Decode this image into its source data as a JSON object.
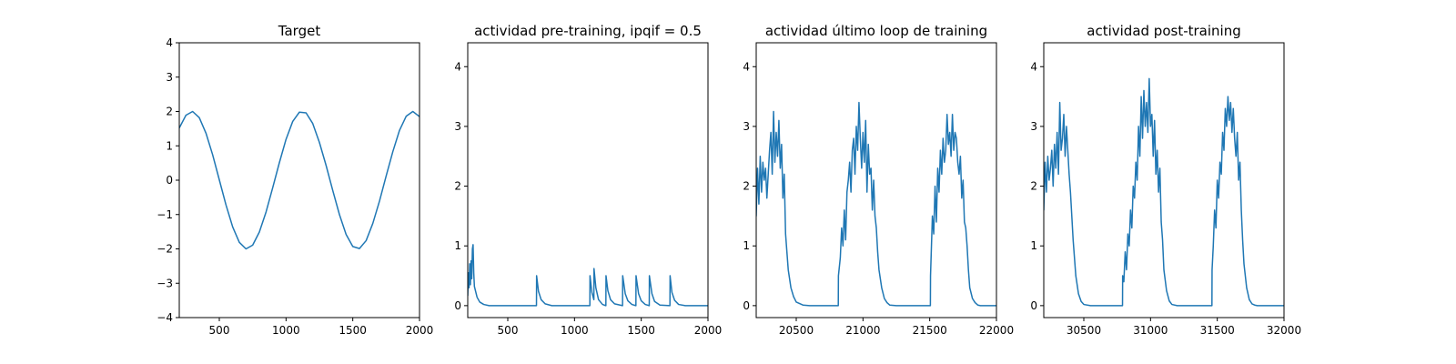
{
  "figure": {
    "background": "#ffffff",
    "line_color": "#1f77b4"
  },
  "chart_data": [
    {
      "type": "line",
      "title": "Target",
      "xlim": [
        200,
        2000
      ],
      "ylim": [
        -4,
        4
      ],
      "xticks": [
        500,
        1000,
        1500,
        2000
      ],
      "yticks": [
        -4,
        -3,
        -2,
        -1,
        0,
        1,
        2,
        3,
        4
      ],
      "series": [
        {
          "x": [
            200,
            250,
            300,
            350,
            400,
            450,
            500,
            550,
            600,
            650,
            700,
            750,
            800,
            850,
            900,
            950,
            1000,
            1050,
            1100,
            1150,
            1200,
            1250,
            1300,
            1350,
            1400,
            1450,
            1500,
            1550,
            1600,
            1650,
            1700,
            1750,
            1800,
            1850,
            1900,
            1950,
            2000
          ],
          "y": [
            1.52,
            1.89,
            2.0,
            1.82,
            1.37,
            0.74,
            0.01,
            -0.72,
            -1.36,
            -1.81,
            -2.0,
            -1.89,
            -1.51,
            -0.93,
            -0.22,
            0.51,
            1.19,
            1.71,
            1.98,
            1.96,
            1.65,
            1.1,
            0.43,
            -0.3,
            -1.0,
            -1.58,
            -1.93,
            -1.99,
            -1.76,
            -1.26,
            -0.61,
            0.12,
            0.83,
            1.45,
            1.86,
            2.0,
            1.85
          ]
        }
      ]
    },
    {
      "type": "line",
      "title": "actividad pre-training, ipqif = 0.5",
      "xlim": [
        200,
        2000
      ],
      "ylim": [
        -0.2,
        4.4
      ],
      "xticks": [
        500,
        1000,
        1500,
        2000
      ],
      "yticks": [
        0,
        1,
        2,
        3,
        4
      ],
      "series": [
        {
          "x": [
            200,
            205,
            210,
            215,
            220,
            225,
            230,
            235,
            240,
            245,
            250,
            270,
            290,
            320,
            360,
            420,
            500,
            715,
            716,
            730,
            750,
            780,
            830,
            900,
            1000,
            1115,
            1116,
            1130,
            1145,
            1146,
            1160,
            1180,
            1210,
            1235,
            1236,
            1250,
            1270,
            1300,
            1360,
            1361,
            1380,
            1400,
            1430,
            1460,
            1461,
            1480,
            1500,
            1530,
            1560,
            1561,
            1580,
            1600,
            1640,
            1715,
            1716,
            1730,
            1750,
            1780,
            1830,
            1900,
            2000
          ],
          "y": [
            0.17,
            0.55,
            0.3,
            0.7,
            0.35,
            0.75,
            0.45,
            0.95,
            1.02,
            0.55,
            0.32,
            0.14,
            0.06,
            0.02,
            0.0,
            0.0,
            0.0,
            0.0,
            0.5,
            0.24,
            0.1,
            0.03,
            0.0,
            0.0,
            0.0,
            0.0,
            0.5,
            0.22,
            0.1,
            0.62,
            0.3,
            0.1,
            0.02,
            0.0,
            0.5,
            0.25,
            0.1,
            0.03,
            0.0,
            0.5,
            0.2,
            0.08,
            0.02,
            0.0,
            0.5,
            0.2,
            0.08,
            0.02,
            0.0,
            0.5,
            0.2,
            0.07,
            0.01,
            0.0,
            0.5,
            0.22,
            0.09,
            0.02,
            0.0,
            0.0,
            0.0
          ]
        }
      ]
    },
    {
      "type": "line",
      "title": "actividad último loop de training",
      "xlim": [
        20200,
        22000
      ],
      "ylim": [
        -0.2,
        4.4
      ],
      "xticks": [
        20500,
        21000,
        21500,
        22000
      ],
      "yticks": [
        0,
        1,
        2,
        3,
        4
      ],
      "series": [
        {
          "x": [
            20200,
            20210,
            20220,
            20230,
            20240,
            20250,
            20260,
            20270,
            20280,
            20290,
            20300,
            20310,
            20320,
            20330,
            20340,
            20350,
            20360,
            20370,
            20380,
            20390,
            20400,
            20410,
            20420,
            20430,
            20440,
            20460,
            20480,
            20500,
            20550,
            20600,
            20700,
            20815,
            20816,
            20830,
            20840,
            20850,
            20860,
            20870,
            20880,
            20890,
            20900,
            20910,
            20920,
            20930,
            20940,
            20950,
            20960,
            20970,
            20980,
            20990,
            21000,
            21010,
            21020,
            21030,
            21040,
            21050,
            21060,
            21070,
            21080,
            21090,
            21100,
            21110,
            21120,
            21140,
            21160,
            21180,
            21200,
            21250,
            21300,
            21400,
            21505,
            21506,
            21520,
            21530,
            21540,
            21550,
            21560,
            21570,
            21580,
            21590,
            21600,
            21610,
            21620,
            21630,
            21640,
            21650,
            21660,
            21670,
            21680,
            21690,
            21700,
            21710,
            21720,
            21730,
            21740,
            21750,
            21760,
            21770,
            21780,
            21790,
            21800,
            21820,
            21840,
            21860,
            21880,
            21900,
            21950,
            22000
          ],
          "y": [
            1.5,
            2.3,
            1.7,
            2.5,
            1.9,
            2.4,
            2.1,
            2.3,
            1.8,
            2.2,
            2.6,
            2.9,
            2.2,
            3.25,
            2.4,
            2.9,
            2.5,
            3.1,
            2.3,
            2.7,
            1.8,
            2.2,
            1.2,
            0.9,
            0.6,
            0.3,
            0.15,
            0.06,
            0.01,
            0.0,
            0.0,
            0.0,
            0.5,
            0.8,
            1.3,
            1.0,
            1.6,
            1.1,
            1.9,
            2.1,
            2.4,
            1.9,
            2.6,
            2.8,
            2.2,
            3.0,
            2.6,
            3.4,
            2.8,
            2.3,
            2.9,
            2.4,
            3.1,
            1.9,
            2.7,
            2.2,
            2.3,
            1.6,
            2.1,
            1.5,
            1.3,
            0.9,
            0.6,
            0.3,
            0.12,
            0.05,
            0.01,
            0.0,
            0.0,
            0.0,
            0.0,
            0.5,
            1.5,
            1.2,
            2.0,
            1.4,
            2.3,
            1.9,
            2.6,
            2.2,
            2.8,
            2.4,
            2.6,
            3.2,
            2.7,
            2.9,
            2.5,
            3.2,
            2.6,
            2.9,
            2.8,
            2.4,
            2.2,
            2.5,
            1.8,
            2.1,
            1.4,
            1.3,
            1.0,
            0.6,
            0.3,
            0.12,
            0.05,
            0.01,
            0.0,
            0.0,
            0.0,
            0.0
          ]
        }
      ]
    },
    {
      "type": "line",
      "title": "actividad post-training",
      "xlim": [
        30200,
        32000
      ],
      "ylim": [
        -0.2,
        4.4
      ],
      "xticks": [
        30500,
        31000,
        31500,
        32000
      ],
      "yticks": [
        0,
        1,
        2,
        3,
        4
      ],
      "series": [
        {
          "x": [
            30200,
            30210,
            30220,
            30230,
            30240,
            30250,
            30260,
            30270,
            30280,
            30290,
            30300,
            30310,
            30320,
            30330,
            30340,
            30350,
            30360,
            30370,
            30380,
            30390,
            30400,
            30410,
            30420,
            30440,
            30460,
            30480,
            30500,
            30550,
            30600,
            30700,
            30790,
            30791,
            30800,
            30810,
            30820,
            30830,
            30840,
            30850,
            30860,
            30870,
            30880,
            30890,
            30900,
            30910,
            30920,
            30930,
            30940,
            30950,
            30960,
            30970,
            30980,
            30990,
            31000,
            31010,
            31020,
            31030,
            31040,
            31050,
            31060,
            31070,
            31080,
            31090,
            31100,
            31120,
            31140,
            31160,
            31200,
            31250,
            31300,
            31400,
            31460,
            31461,
            31470,
            31480,
            31490,
            31500,
            31510,
            31520,
            31530,
            31540,
            31550,
            31560,
            31570,
            31580,
            31590,
            31600,
            31610,
            31620,
            31630,
            31640,
            31650,
            31660,
            31670,
            31680,
            31690,
            31700,
            31720,
            31740,
            31760,
            31780,
            31800,
            31850,
            31900,
            32000
          ],
          "y": [
            1.6,
            2.4,
            1.9,
            2.5,
            2.1,
            2.3,
            2.6,
            2.0,
            2.7,
            2.3,
            2.9,
            2.2,
            3.4,
            2.6,
            2.8,
            3.2,
            2.5,
            3.0,
            2.6,
            2.2,
            1.9,
            1.5,
            1.1,
            0.5,
            0.2,
            0.07,
            0.02,
            0.0,
            0.0,
            0.0,
            0.0,
            0.5,
            0.4,
            0.9,
            0.6,
            1.2,
            1.0,
            1.6,
            1.3,
            2.0,
            1.8,
            2.4,
            2.1,
            3.0,
            2.5,
            3.5,
            2.8,
            3.6,
            3.0,
            3.4,
            2.9,
            3.8,
            3.0,
            3.2,
            2.5,
            3.1,
            2.2,
            2.6,
            1.9,
            2.3,
            1.4,
            1.1,
            0.6,
            0.25,
            0.08,
            0.02,
            0.0,
            0.0,
            0.0,
            0.0,
            0.0,
            0.6,
            1.0,
            1.6,
            1.3,
            2.1,
            1.8,
            2.4,
            2.2,
            2.9,
            2.6,
            3.3,
            3.0,
            3.5,
            3.1,
            3.4,
            2.9,
            3.3,
            2.8,
            2.5,
            2.9,
            2.1,
            2.4,
            1.6,
            1.1,
            0.7,
            0.3,
            0.1,
            0.03,
            0.01,
            0.0,
            0.0,
            0.0,
            0.0
          ]
        }
      ]
    }
  ]
}
